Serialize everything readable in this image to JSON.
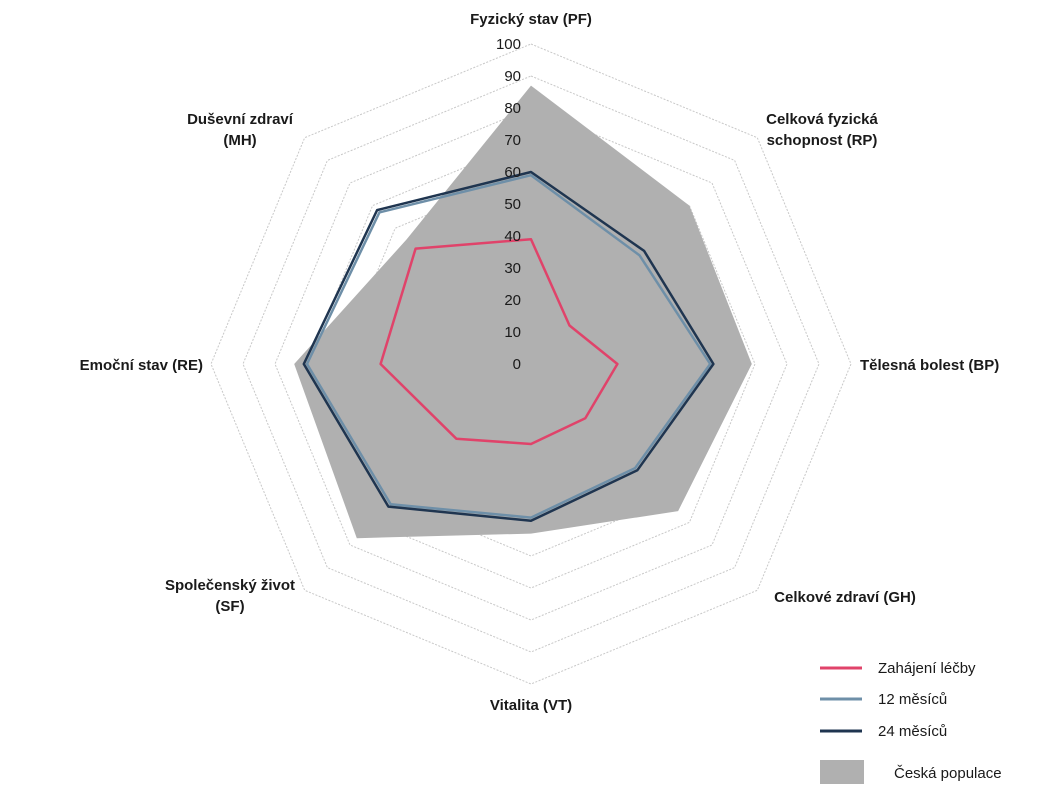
{
  "chart_data": {
    "type": "radar",
    "title": "",
    "axes": [
      {
        "label_lines": [
          "Fyzický stav (PF)"
        ]
      },
      {
        "label_lines": [
          "Celková fyzická",
          "schopnost (RP)"
        ]
      },
      {
        "label_lines": [
          "Tělesná bolest (BP)"
        ]
      },
      {
        "label_lines": [
          "Celkové zdraví (GH)"
        ]
      },
      {
        "label_lines": [
          "Vitalita (VT)"
        ]
      },
      {
        "label_lines": [
          "Společenský život",
          "(SF)"
        ]
      },
      {
        "label_lines": [
          "Emoční stav (RE)"
        ]
      },
      {
        "label_lines": [
          "Duševní zdraví",
          "(MH)"
        ]
      }
    ],
    "categories": [
      "Fyzický stav (PF)",
      "Celková fyzická schopnost (RP)",
      "Tělesná bolest (BP)",
      "Celkové zdraví (GH)",
      "Vitalita (VT)",
      "Společenský život (SF)",
      "Emoční stav (RE)",
      "Duševní zdraví (MH)"
    ],
    "ticks": [
      "0",
      "10",
      "20",
      "30",
      "40",
      "50",
      "60",
      "70",
      "80",
      "90",
      "100"
    ],
    "rlim": [
      0,
      100
    ],
    "grid": true,
    "legend_position": "bottom-right",
    "series": [
      {
        "name": "Zahájení léčby",
        "style": "line",
        "color": "#e0436a",
        "values": [
          39,
          17,
          27,
          24,
          25,
          33,
          47,
          51
        ]
      },
      {
        "name": "12 měsíců",
        "style": "line",
        "color": "#6e8fa8",
        "values": [
          59,
          48,
          56,
          46,
          48,
          62,
          70,
          67
        ]
      },
      {
        "name": "24 měsíců",
        "style": "line",
        "color": "#1f3550",
        "values": [
          60,
          50,
          57,
          47,
          49,
          63,
          71,
          68
        ]
      },
      {
        "name": "Česká populace",
        "style": "area",
        "color": "#b0b0b0",
        "values": [
          87,
          70,
          69,
          65,
          53,
          77,
          74,
          55
        ]
      }
    ]
  }
}
